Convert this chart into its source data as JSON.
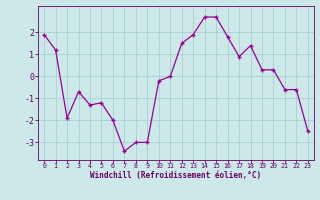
{
  "x": [
    0,
    1,
    2,
    3,
    4,
    5,
    6,
    7,
    8,
    9,
    10,
    11,
    12,
    13,
    14,
    15,
    16,
    17,
    18,
    19,
    20,
    21,
    22,
    23
  ],
  "y": [
    1.9,
    1.2,
    -1.9,
    -0.7,
    -1.3,
    -1.2,
    -2.0,
    -3.4,
    -3.0,
    -3.0,
    -0.2,
    0.0,
    1.5,
    1.9,
    2.7,
    2.7,
    1.8,
    0.9,
    1.4,
    0.3,
    0.3,
    -0.6,
    -0.6,
    -2.5
  ],
  "line_color": "#990099",
  "marker": "+",
  "bg_color": "#cce8e8",
  "grid_color": "#aad4d4",
  "tick_color": "#660066",
  "label_color": "#660066",
  "xlabel": "Windchill (Refroidissement éolien,°C)",
  "ylim": [
    -3.8,
    3.2
  ],
  "xlim": [
    -0.5,
    23.5
  ],
  "yticks": [
    -3,
    -2,
    -1,
    0,
    1,
    2
  ],
  "xticks": [
    0,
    1,
    2,
    3,
    4,
    5,
    6,
    7,
    8,
    9,
    10,
    11,
    12,
    13,
    14,
    15,
    16,
    17,
    18,
    19,
    20,
    21,
    22,
    23
  ],
  "xlabel_fontsize": 5.5,
  "ytick_fontsize": 6.0,
  "xtick_fontsize": 4.8
}
